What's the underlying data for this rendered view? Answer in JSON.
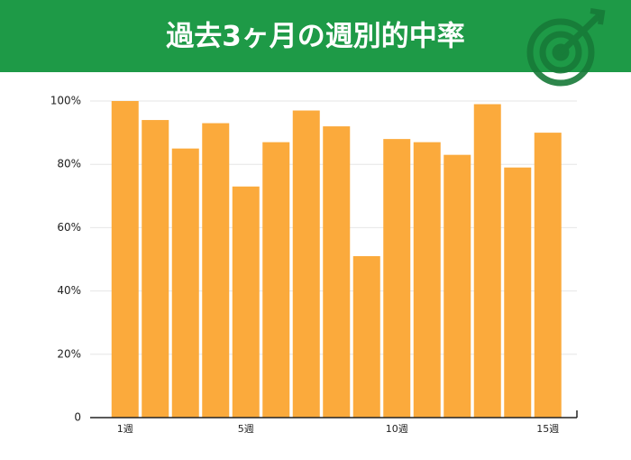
{
  "chart_data": {
    "type": "bar",
    "title": "過去3ヶ月の週別的中率",
    "categories": [
      "1週",
      null,
      null,
      null,
      "5週",
      null,
      null,
      null,
      null,
      "10週",
      null,
      null,
      null,
      null,
      "15週"
    ],
    "values": [
      100,
      94,
      85,
      93,
      73,
      87,
      97,
      92,
      51,
      88,
      87,
      83,
      99,
      79,
      90
    ],
    "color": "#fbaa3c",
    "ylim": [
      0,
      100
    ],
    "yticks": [
      0,
      {
        "value": 20,
        "label": "20%"
      },
      {
        "value": 40,
        "label": "40%"
      },
      {
        "value": 60,
        "label": "60%"
      },
      {
        "value": 80,
        "label": "80%"
      },
      {
        "value": 100,
        "label": "100%"
      }
    ],
    "grid": true
  }
}
